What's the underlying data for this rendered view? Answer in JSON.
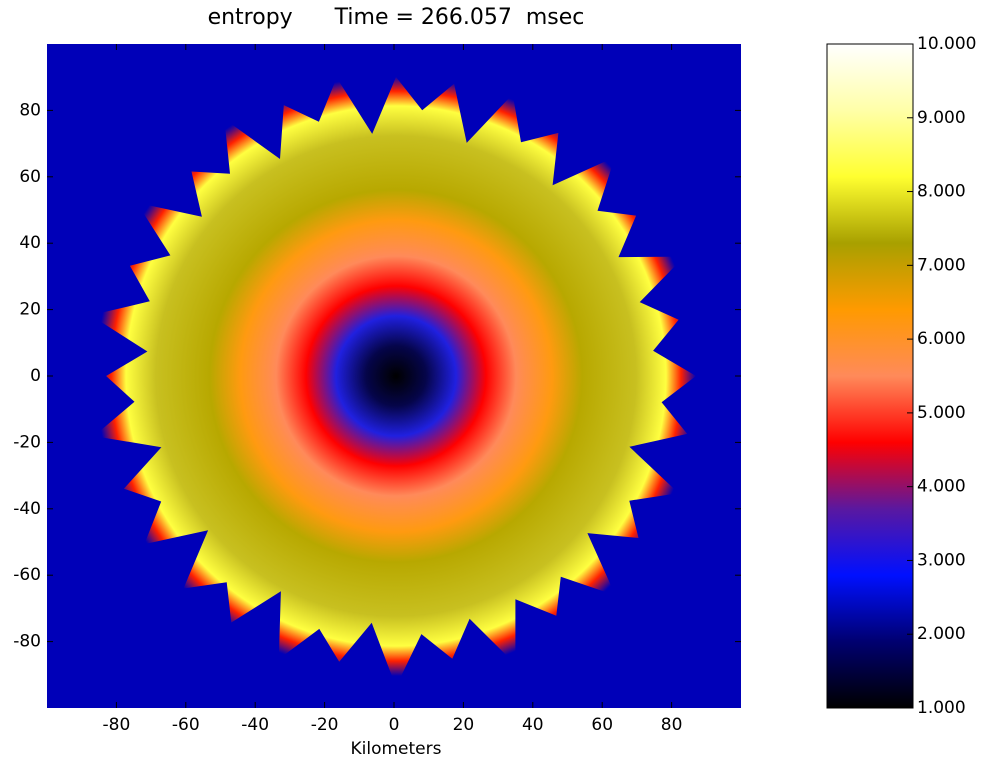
{
  "chart_data": {
    "type": "heatmap",
    "title": "entropy      Time = 266.057  msec",
    "x_label": "Kilometers",
    "xlim": [
      -100,
      100
    ],
    "ylim": [
      -100,
      100
    ],
    "xticks": [
      -80,
      -60,
      -40,
      -20,
      0,
      20,
      40,
      60,
      80
    ],
    "yticks": [
      -80,
      -60,
      -40,
      -20,
      0,
      20,
      40,
      60,
      80
    ],
    "colorbar": {
      "lim": [
        1,
        10
      ],
      "ticks": [
        {
          "value": 1,
          "label": "1.000"
        },
        {
          "value": 2,
          "label": "2.000"
        },
        {
          "value": 3,
          "label": "3.000"
        },
        {
          "value": 4,
          "label": "4.000"
        },
        {
          "value": 5,
          "label": "5.000"
        },
        {
          "value": 6,
          "label": "6.000"
        },
        {
          "value": 7,
          "label": "7.000"
        },
        {
          "value": 8,
          "label": "8.000"
        },
        {
          "value": 9,
          "label": "9.000"
        },
        {
          "value": 10,
          "label": "10.000"
        }
      ],
      "colors": [
        "#000000",
        "#000070",
        "#0010ff",
        "#5a18a0",
        "#ff0000",
        "#ff8a5a",
        "#ff9a00",
        "#a8a000",
        "#ffff30",
        "#ffffa8",
        "#ffffff"
      ]
    }
  }
}
